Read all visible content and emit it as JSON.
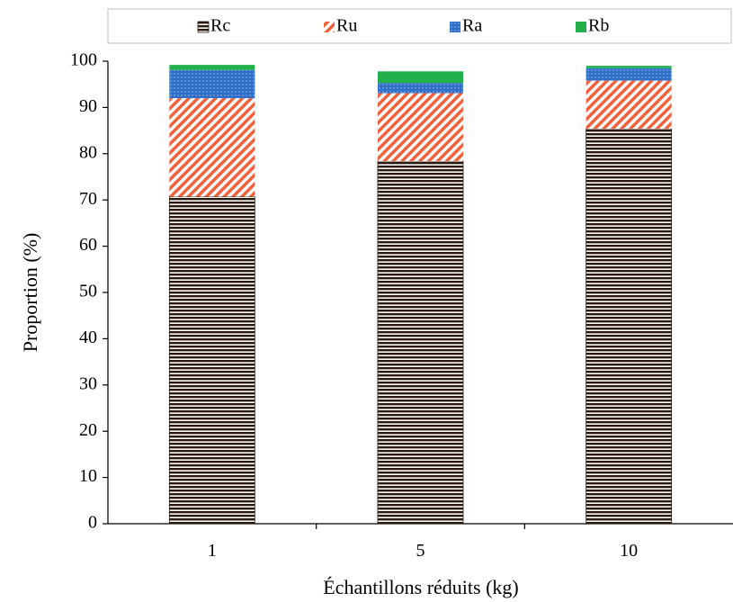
{
  "chart_data": {
    "type": "bar",
    "stacked": true,
    "categories": [
      "1",
      "5",
      "10"
    ],
    "series": [
      {
        "name": "Rc",
        "values": [
          70.7,
          78.4,
          85.4
        ],
        "color": "#2b1a10",
        "pattern": "horizontal-stripes"
      },
      {
        "name": "Ru",
        "values": [
          21.3,
          14.7,
          10.4
        ],
        "color": "#f4603a",
        "pattern": "diagonal-stripes"
      },
      {
        "name": "Ra",
        "values": [
          6.1,
          2.2,
          2.7
        ],
        "color": "#2f6fc8",
        "pattern": "dotted"
      },
      {
        "name": "Rb",
        "values": [
          1.1,
          2.5,
          0.5
        ],
        "color": "#22b04a",
        "pattern": "solid"
      }
    ],
    "xlabel": "Échantillons réduits (kg)",
    "ylabel": "Proportion (%)",
    "ylim": [
      0,
      100
    ],
    "yticks": [
      "0",
      "10",
      "20",
      "30",
      "40",
      "50",
      "60",
      "70",
      "80",
      "90",
      "100"
    ],
    "grid": false,
    "legend": "top"
  }
}
